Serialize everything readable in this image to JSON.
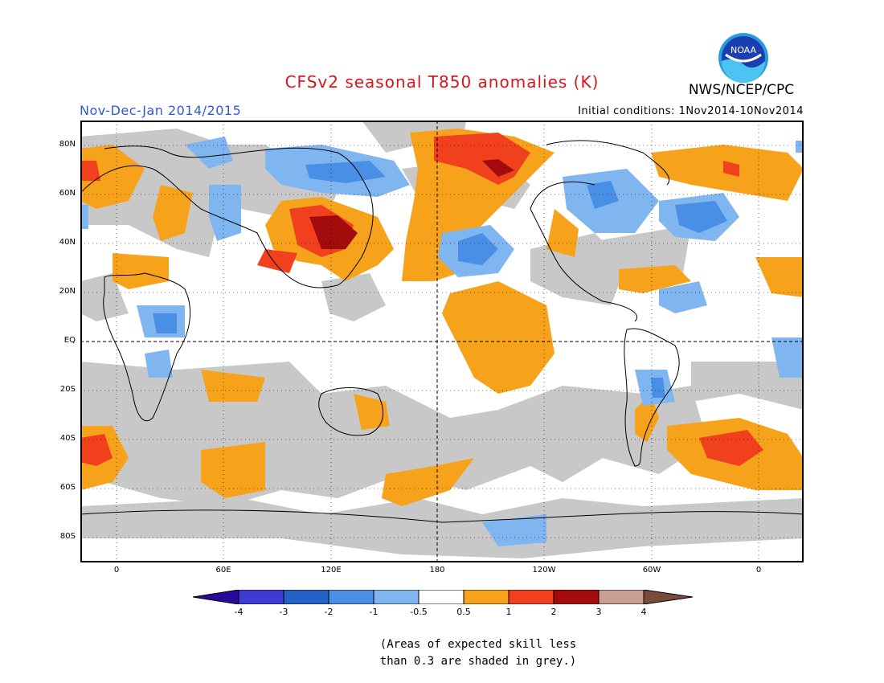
{
  "header": {
    "title": "CFSv2 seasonal T850 anomalies (K)",
    "period": "Nov-Dec-Jan 2014/2015",
    "initial_conditions": "Initial conditions: 1Nov2014-10Nov2014",
    "agency": "NWS/NCEP/CPC",
    "logo_text": "NOAA"
  },
  "colors": {
    "title": "#d8141e",
    "period": "#2e5ad8",
    "grey_low_skill": "#c8c8c8",
    "ocean_land_background": "#ffffff",
    "pos_0_5_1": "#f7a21b",
    "pos_1_2": "#f0401e",
    "pos_2_3": "#a20c0c",
    "neg_0_5_1": "#7fb6f0",
    "neg_1_2": "#4a8fe6",
    "neg_2_3": "#2462c8"
  },
  "map": {
    "lat_labels": [
      "80N",
      "60N",
      "40N",
      "20N",
      "EQ",
      "20S",
      "40S",
      "60S",
      "80S"
    ],
    "lon_labels": [
      "0",
      "60E",
      "120E",
      "180",
      "120W",
      "60W",
      "0"
    ]
  },
  "colorbar": {
    "ticks": [
      "-4",
      "-3",
      "-2",
      "-1",
      "-0.5",
      "0.5",
      "1",
      "2",
      "3",
      "4"
    ],
    "colors": [
      "#2a0a9a",
      "#3c3cd4",
      "#2462c8",
      "#4a8fe6",
      "#7fb6f0",
      "#ffffff",
      "#f7a21b",
      "#f0401e",
      "#a20c0c",
      "#c8a092",
      "#7a4a3a"
    ]
  },
  "note": {
    "line1": "(Areas of expected skill less",
    "line2": "than 0.3 are shaded in grey.)"
  }
}
